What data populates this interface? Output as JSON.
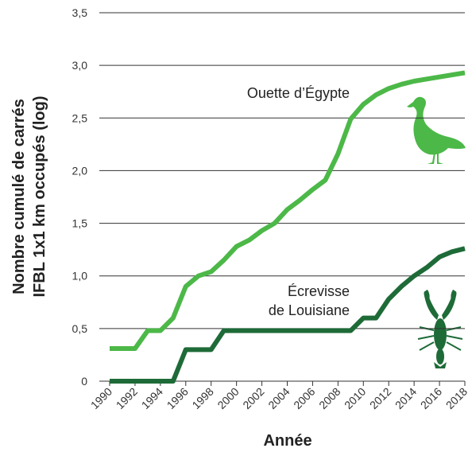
{
  "chart_data": {
    "type": "line",
    "x_label": "Année",
    "y_label": [
      "Nombre cumulé de carrés",
      "IFBL 1x1 km occupés (log)"
    ],
    "x": [
      1990,
      1991,
      1992,
      1993,
      1994,
      1995,
      1996,
      1997,
      1998,
      1999,
      2000,
      2001,
      2002,
      2003,
      2004,
      2005,
      2006,
      2007,
      2008,
      2009,
      2010,
      2011,
      2012,
      2013,
      2014,
      2015,
      2016,
      2017,
      2018
    ],
    "series": [
      {
        "name": "Ouette d’Égypte",
        "color": "#4cb848",
        "values": [
          0.31,
          0.31,
          0.31,
          0.48,
          0.48,
          0.6,
          0.9,
          1.0,
          1.04,
          1.15,
          1.28,
          1.34,
          1.43,
          1.5,
          1.63,
          1.72,
          1.82,
          1.91,
          2.16,
          2.49,
          2.63,
          2.72,
          2.78,
          2.82,
          2.85,
          2.87,
          2.89,
          2.91,
          2.93
        ]
      },
      {
        "name": "Écrevisse de Louisiane",
        "color": "#1e6b38",
        "values": [
          0,
          0,
          0,
          0,
          0,
          0,
          0.3,
          0.3,
          0.3,
          0.48,
          0.48,
          0.48,
          0.48,
          0.48,
          0.48,
          0.48,
          0.48,
          0.48,
          0.48,
          0.48,
          0.6,
          0.6,
          0.78,
          0.9,
          1.0,
          1.08,
          1.18,
          1.23,
          1.26
        ]
      }
    ],
    "xlim": [
      1990,
      2018
    ],
    "xticks": [
      1990,
      1992,
      1994,
      1996,
      1998,
      2000,
      2002,
      2004,
      2006,
      2008,
      2010,
      2012,
      2014,
      2016,
      2018
    ],
    "ylim": [
      0,
      3.5
    ],
    "yticks": [
      0,
      {
        "value": 0.5,
        "label": "0,5"
      },
      {
        "value": 1,
        "label": "1,0"
      },
      {
        "value": 1.5,
        "label": "1,5"
      },
      {
        "value": 2,
        "label": "2,0"
      },
      {
        "value": 2.5,
        "label": "2,5"
      },
      {
        "value": 3,
        "label": "3,0"
      },
      {
        "value": 3.5,
        "label": "3,5"
      }
    ],
    "grid": true
  }
}
